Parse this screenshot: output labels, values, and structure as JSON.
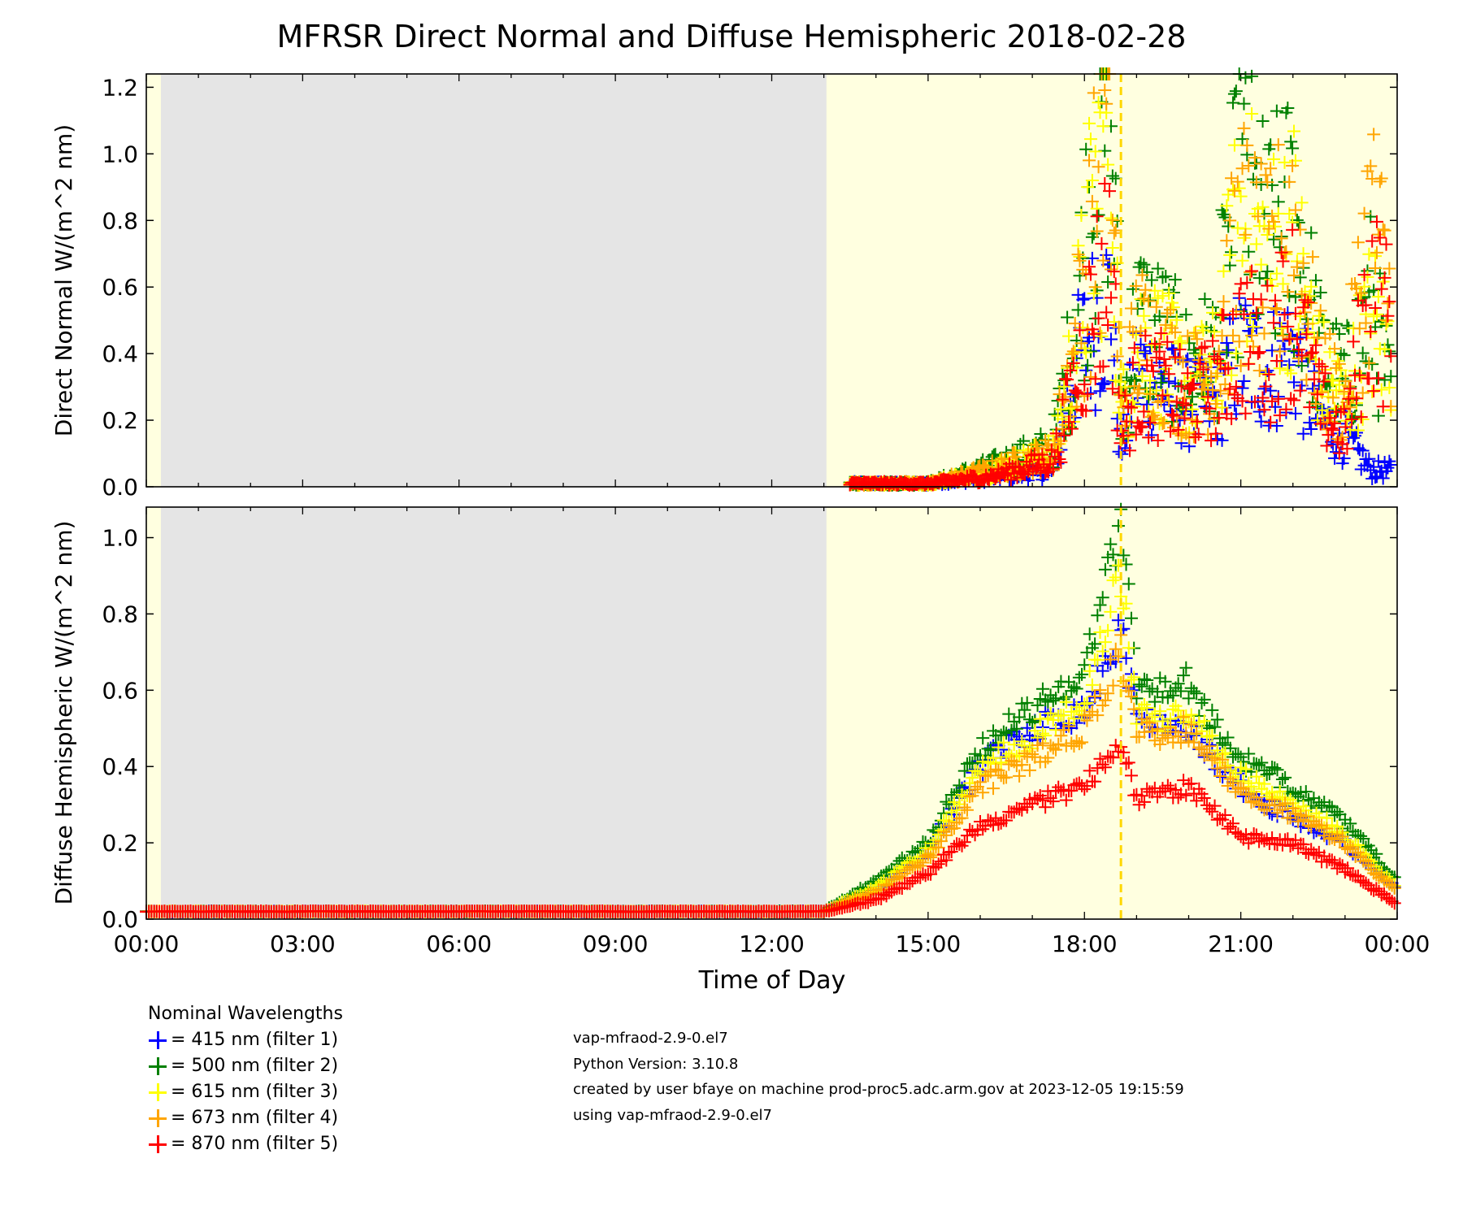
{
  "chart_data": [
    {
      "type": "scatter",
      "title": "MFRSR Direct Normal and Diffuse Hemispheric 2018-02-28",
      "ylabel": "Direct Normal W/(m^2 nm)",
      "xlim": [
        0,
        24
      ],
      "ylim": [
        0,
        1.24
      ],
      "yticks": [
        "0.0",
        "0.2",
        "0.4",
        "0.6",
        "0.8",
        "1.0",
        "1.2"
      ],
      "night_shading_hours": [
        0.28,
        13.05
      ],
      "solar_noon_hour": 18.7,
      "series": [
        {
          "name": "415 nm (filter 1)",
          "color": "#0000ff",
          "x": [
            13.5,
            15,
            16.2,
            17.4,
            17.8,
            18.2,
            18.5,
            18.7,
            19.0,
            19.5,
            20.0,
            20.5,
            21.0,
            21.5,
            22.0,
            22.5,
            23.0,
            23.5,
            23.9
          ],
          "y": [
            0.01,
            0.01,
            0.03,
            0.05,
            0.35,
            0.5,
            0.55,
            0.1,
            0.35,
            0.3,
            0.25,
            0.25,
            0.4,
            0.35,
            0.4,
            0.2,
            0.15,
            0.05,
            0.05
          ]
        },
        {
          "name": "500 nm (filter 2)",
          "color": "#008000",
          "x": [
            13.5,
            15,
            16.2,
            17.4,
            17.8,
            18.2,
            18.5,
            18.7,
            19.0,
            19.5,
            20.0,
            20.5,
            21.0,
            21.5,
            22.0,
            22.5,
            23.0,
            23.5,
            23.9
          ],
          "y": [
            0.01,
            0.01,
            0.06,
            0.12,
            0.45,
            0.95,
            1.2,
            0.2,
            0.5,
            0.45,
            0.35,
            0.4,
            0.9,
            0.7,
            0.8,
            0.4,
            0.3,
            0.55,
            0.25
          ]
        },
        {
          "name": "615 nm (filter 3)",
          "color": "#ffff00",
          "x": [
            13.5,
            15,
            16.2,
            17.4,
            17.8,
            18.2,
            18.5,
            18.7,
            19.0,
            19.5,
            20.0,
            20.5,
            21.0,
            21.5,
            22.0,
            22.5,
            23.0,
            23.5,
            23.9
          ],
          "y": [
            0.01,
            0.01,
            0.05,
            0.1,
            0.4,
            0.85,
            1.1,
            0.2,
            0.45,
            0.4,
            0.3,
            0.35,
            0.8,
            0.65,
            0.75,
            0.35,
            0.25,
            0.5,
            0.4
          ]
        },
        {
          "name": "673 nm (filter 4)",
          "color": "#ffa500",
          "x": [
            13.5,
            15,
            16.2,
            17.4,
            17.8,
            18.2,
            18.5,
            18.7,
            19.0,
            19.5,
            20.0,
            20.5,
            21.0,
            21.5,
            22.0,
            22.5,
            23.0,
            23.5,
            23.9
          ],
          "y": [
            0.01,
            0.01,
            0.05,
            0.1,
            0.4,
            0.8,
            1.05,
            0.2,
            0.45,
            0.4,
            0.3,
            0.35,
            0.75,
            0.6,
            0.8,
            0.35,
            0.25,
            0.8,
            0.5
          ]
        },
        {
          "name": "870 nm (filter 5)",
          "color": "#ff0000",
          "x": [
            13.5,
            15,
            16.2,
            17.4,
            17.8,
            18.2,
            18.5,
            18.7,
            19.0,
            19.5,
            20.0,
            20.5,
            21.0,
            21.5,
            22.0,
            22.5,
            23.0,
            23.5,
            23.9
          ],
          "y": [
            0.01,
            0.01,
            0.03,
            0.08,
            0.3,
            0.55,
            0.7,
            0.15,
            0.3,
            0.3,
            0.25,
            0.3,
            0.45,
            0.4,
            0.55,
            0.25,
            0.15,
            0.6,
            0.45
          ]
        }
      ]
    },
    {
      "type": "scatter",
      "xlabel": "Time of Day",
      "ylabel": "Diffuse Hemispheric W/(m^2 nm)",
      "xlim": [
        0,
        24
      ],
      "ylim": [
        0,
        1.08
      ],
      "xticks": [
        "00:00",
        "03:00",
        "06:00",
        "09:00",
        "12:00",
        "15:00",
        "18:00",
        "21:00",
        "00:00"
      ],
      "yticks": [
        "0.0",
        "0.2",
        "0.4",
        "0.6",
        "0.8",
        "1.0"
      ],
      "night_shading_hours": [
        0.28,
        13.05
      ],
      "solar_noon_hour": 18.7,
      "series": [
        {
          "name": "415 nm (filter 1)",
          "color": "#0000ff",
          "x": [
            0,
            6,
            13.0,
            14,
            15,
            16,
            17,
            18,
            18.7,
            19,
            19.5,
            20,
            20.5,
            21,
            21.5,
            22,
            23,
            24
          ],
          "y": [
            0.02,
            0.02,
            0.02,
            0.08,
            0.18,
            0.4,
            0.5,
            0.55,
            0.75,
            0.55,
            0.5,
            0.5,
            0.42,
            0.35,
            0.3,
            0.27,
            0.2,
            0.08
          ]
        },
        {
          "name": "500 nm (filter 2)",
          "color": "#008000",
          "x": [
            0,
            6,
            13.0,
            14,
            15,
            16,
            17,
            18,
            18.7,
            19,
            19.5,
            20,
            20.5,
            21,
            21.5,
            22,
            23,
            24
          ],
          "y": [
            0.02,
            0.02,
            0.02,
            0.1,
            0.2,
            0.45,
            0.55,
            0.65,
            1.05,
            0.62,
            0.6,
            0.62,
            0.5,
            0.42,
            0.38,
            0.35,
            0.25,
            0.1
          ]
        },
        {
          "name": "615 nm (filter 3)",
          "color": "#ffff00",
          "x": [
            0,
            6,
            13.0,
            14,
            15,
            16,
            17,
            18,
            18.7,
            19,
            19.5,
            20,
            20.5,
            21,
            21.5,
            22,
            23,
            24
          ],
          "y": [
            0.02,
            0.02,
            0.02,
            0.08,
            0.18,
            0.4,
            0.48,
            0.58,
            0.9,
            0.55,
            0.52,
            0.54,
            0.45,
            0.38,
            0.33,
            0.3,
            0.22,
            0.08
          ]
        },
        {
          "name": "673 nm (filter 4)",
          "color": "#ffa500",
          "x": [
            0,
            6,
            13.0,
            14,
            15,
            16,
            17,
            18,
            18.7,
            19,
            19.5,
            20,
            20.5,
            21,
            21.5,
            22,
            23,
            24
          ],
          "y": [
            0.02,
            0.02,
            0.02,
            0.07,
            0.16,
            0.35,
            0.42,
            0.5,
            0.7,
            0.5,
            0.48,
            0.5,
            0.42,
            0.33,
            0.3,
            0.28,
            0.2,
            0.07
          ]
        },
        {
          "name": "870 nm (filter 5)",
          "color": "#ff0000",
          "x": [
            0,
            6,
            13.0,
            14,
            15,
            16,
            17,
            18,
            18.7,
            19,
            19.5,
            20,
            20.5,
            21,
            21.5,
            22,
            23,
            24
          ],
          "y": [
            0.02,
            0.02,
            0.02,
            0.05,
            0.12,
            0.25,
            0.3,
            0.35,
            0.45,
            0.32,
            0.33,
            0.35,
            0.28,
            0.22,
            0.2,
            0.2,
            0.13,
            0.04
          ]
        }
      ]
    }
  ],
  "legend": {
    "title": "Nominal Wavelengths",
    "items": [
      {
        "label": "= 415 nm (filter 1)",
        "color": "#0000ff"
      },
      {
        "label": "= 500 nm (filter 2)",
        "color": "#008000"
      },
      {
        "label": "= 615 nm (filter 3)",
        "color": "#ffff00"
      },
      {
        "label": "= 673 nm (filter 4)",
        "color": "#ffa500"
      },
      {
        "label": "= 870 nm (filter 5)",
        "color": "#ff0000"
      }
    ]
  },
  "info_lines": [
    "vap-mfraod-2.9-0.el7",
    "Python Version: 3.10.8",
    "created by user bfaye on machine prod-proc5.adc.arm.gov at 2023-12-05 19:15:59",
    "using vap-mfraod-2.9-0.el7"
  ],
  "colors": {
    "day_background": "#ffffe0",
    "night_background": "#e5e5e5",
    "noon_line": "#ffd700"
  }
}
